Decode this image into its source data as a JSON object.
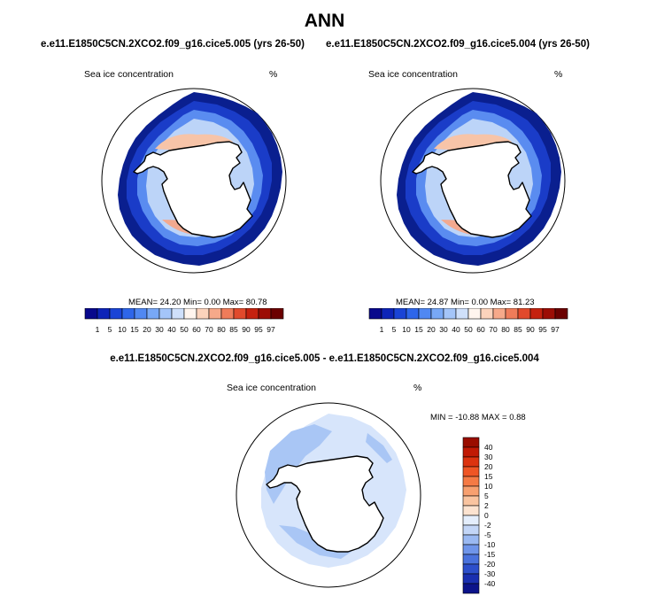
{
  "figure": {
    "title": "ANN",
    "left_title": "e.e11.E1850C5CN.2XCO2.f09_g16.cice5.005 (yrs 26-50)",
    "right_title": "e.e11.E1850C5CN.2XCO2.f09_g16.cice5.004 (yrs 26-50)",
    "diff_title": "e.e11.E1850C5CN.2XCO2.f09_g16.cice5.005 - e.e11.E1850C5CN.2XCO2.f09_g16.cice5.004"
  },
  "panels": {
    "left": {
      "variable": "Sea ice concentration",
      "units": "%",
      "stats": "MEAN=  24.20  Min=   0.00  Max=  80.78"
    },
    "right": {
      "variable": "Sea ice concentration",
      "units": "%",
      "stats": "MEAN=  24.87  Min=   0.00  Max=  81.23"
    },
    "diff": {
      "variable": "Sea ice concentration",
      "units": "%",
      "stats": "MIN = -10.88 MAX =   0.88"
    }
  },
  "colors": {
    "coastline": "#000000",
    "ice_edge": "#0a1f8f",
    "ice_dark": "#1a3cc8",
    "ice_mid": "#5a8cf0",
    "ice_light": "#bcd4f8",
    "ice_warm": "#f7c4a8",
    "diff_mid": "#a9c6f5",
    "diff_light": "#d7e5fb"
  },
  "chart_data": [
    {
      "type": "heatmap",
      "title": "e.e11.E1850C5CN.2XCO2.f09_g16.cice5.005 (yrs 26-50)",
      "variable": "Sea ice concentration",
      "units": "%",
      "projection": "south polar stereographic",
      "stats": {
        "mean": 24.2,
        "min": 0.0,
        "max": 80.78
      },
      "colorbar": {
        "orientation": "horizontal",
        "ticks": [
          "1",
          "5",
          "10",
          "15",
          "20",
          "30",
          "40",
          "50",
          "60",
          "70",
          "80",
          "85",
          "90",
          "95",
          "97"
        ],
        "colors": [
          "#08088c",
          "#0d24b8",
          "#1a44d6",
          "#2e66ea",
          "#5088f2",
          "#78a8f6",
          "#a4c5f9",
          "#cfe0fb",
          "#fff5ee",
          "#fbd3bc",
          "#f6a98a",
          "#ef7c5a",
          "#e14a2c",
          "#c5220f",
          "#9c0d05",
          "#6b0000"
        ]
      }
    },
    {
      "type": "heatmap",
      "title": "e.e11.E1850C5CN.2XCO2.f09_g16.cice5.004 (yrs 26-50)",
      "variable": "Sea ice concentration",
      "units": "%",
      "projection": "south polar stereographic",
      "stats": {
        "mean": 24.87,
        "min": 0.0,
        "max": 81.23
      },
      "colorbar": {
        "orientation": "horizontal",
        "ticks": [
          "1",
          "5",
          "10",
          "15",
          "20",
          "30",
          "40",
          "50",
          "60",
          "70",
          "80",
          "85",
          "90",
          "95",
          "97"
        ],
        "colors": [
          "#08088c",
          "#0d24b8",
          "#1a44d6",
          "#2e66ea",
          "#5088f2",
          "#78a8f6",
          "#a4c5f9",
          "#cfe0fb",
          "#fff5ee",
          "#fbd3bc",
          "#f6a98a",
          "#ef7c5a",
          "#e14a2c",
          "#c5220f",
          "#9c0d05",
          "#6b0000"
        ]
      }
    },
    {
      "type": "heatmap",
      "title": "e.e11.E1850C5CN.2XCO2.f09_g16.cice5.005 - e.e11.E1850C5CN.2XCO2.f09_g16.cice5.004",
      "variable": "Sea ice concentration",
      "units": "%",
      "projection": "south polar stereographic",
      "stats": {
        "min": -10.88,
        "max": 0.88
      },
      "colorbar": {
        "orientation": "vertical",
        "ticks": [
          "40",
          "30",
          "20",
          "15",
          "10",
          "5",
          "2",
          "0",
          "-2",
          "-5",
          "-10",
          "-15",
          "-20",
          "-30",
          "-40"
        ],
        "colors": [
          "#9a0d00",
          "#c11a05",
          "#dc3310",
          "#ef5525",
          "#f57a45",
          "#f7a070",
          "#f9c4a0",
          "#fce3d0",
          "#e4eefc",
          "#c3d6f7",
          "#9ab9f2",
          "#6f95ea",
          "#4a72dd",
          "#2d4fcb",
          "#1a2fb0",
          "#0c138a"
        ]
      }
    }
  ]
}
